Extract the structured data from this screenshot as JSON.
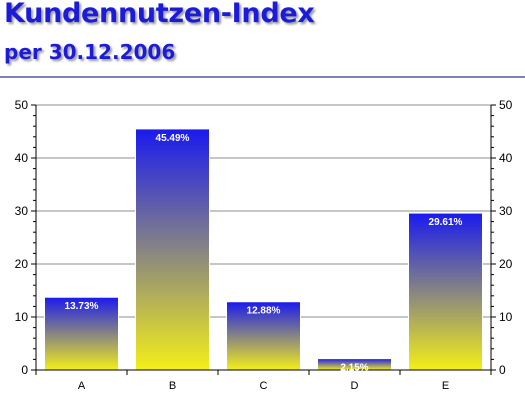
{
  "header": {
    "title": "Kundennutzen-Index",
    "subtitle": "per 30.12.2006"
  },
  "colors": {
    "title": "#1c1cd8",
    "bar_top": "#1a1aee",
    "bar_bottom": "#f4ef18",
    "rule": "#8080b4"
  },
  "chart_data": {
    "type": "bar",
    "title": "Kundennutzen-Index",
    "subtitle": "per 30.12.2006",
    "categories": [
      "A",
      "B",
      "C",
      "D",
      "E"
    ],
    "values": [
      13.73,
      45.49,
      12.88,
      2.15,
      29.61
    ],
    "data_labels": [
      "13.73%",
      "45.49%",
      "12.88%",
      "2.15%",
      "29.61%"
    ],
    "y_ticks": [
      0,
      10,
      20,
      30,
      40,
      50
    ],
    "ylim": [
      0,
      50
    ],
    "xlabel": "",
    "ylabel": "",
    "grid": true,
    "legend": "none",
    "secondary_y_axis": true
  }
}
